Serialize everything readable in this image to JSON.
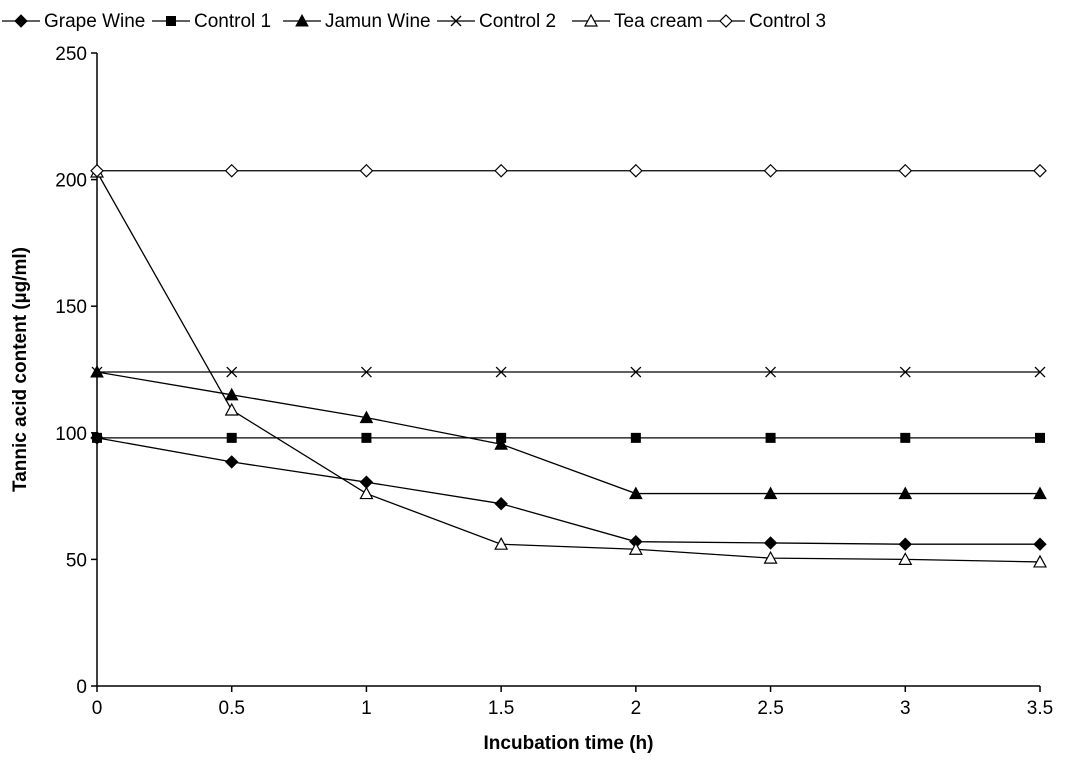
{
  "chart_data": {
    "type": "line",
    "title": "",
    "xlabel": "Incubation time (h)",
    "ylabel": "Tannic acid content (µg/ml)",
    "x": [
      0,
      0.5,
      1,
      1.5,
      2,
      2.5,
      3,
      3.5
    ],
    "x_tick_labels": [
      "0",
      "0.5",
      "1",
      "1.5",
      "2",
      "2.5",
      "3",
      "3.5"
    ],
    "y_tick_labels": [
      "0",
      "50",
      "100",
      "150",
      "200",
      "250"
    ],
    "xlim": [
      0,
      3.5
    ],
    "ylim": [
      0,
      250
    ],
    "grid": false,
    "legend_position": "top",
    "series": [
      {
        "name": "Grape Wine",
        "marker": "diamond-filled",
        "values": [
          98,
          88.5,
          80.5,
          72,
          57,
          56.5,
          56,
          56
        ]
      },
      {
        "name": "Control 1",
        "marker": "square-filled",
        "values": [
          98,
          98,
          98,
          98,
          98,
          98,
          98,
          98
        ]
      },
      {
        "name": "Jamun Wine",
        "marker": "triangle-filled",
        "values": [
          124,
          115,
          106,
          95.5,
          76,
          76,
          76,
          76
        ]
      },
      {
        "name": "Control 2",
        "marker": "x",
        "values": [
          124,
          124,
          124,
          124,
          124,
          124,
          124,
          124
        ]
      },
      {
        "name": "Tea cream",
        "marker": "triangle-open",
        "values": [
          203,
          109,
          76,
          56,
          54,
          50.5,
          50,
          49
        ]
      },
      {
        "name": "Control 3",
        "marker": "diamond-open",
        "values": [
          203.5,
          203.5,
          203.5,
          203.5,
          203.5,
          203.5,
          203.5,
          203.5
        ]
      }
    ]
  }
}
